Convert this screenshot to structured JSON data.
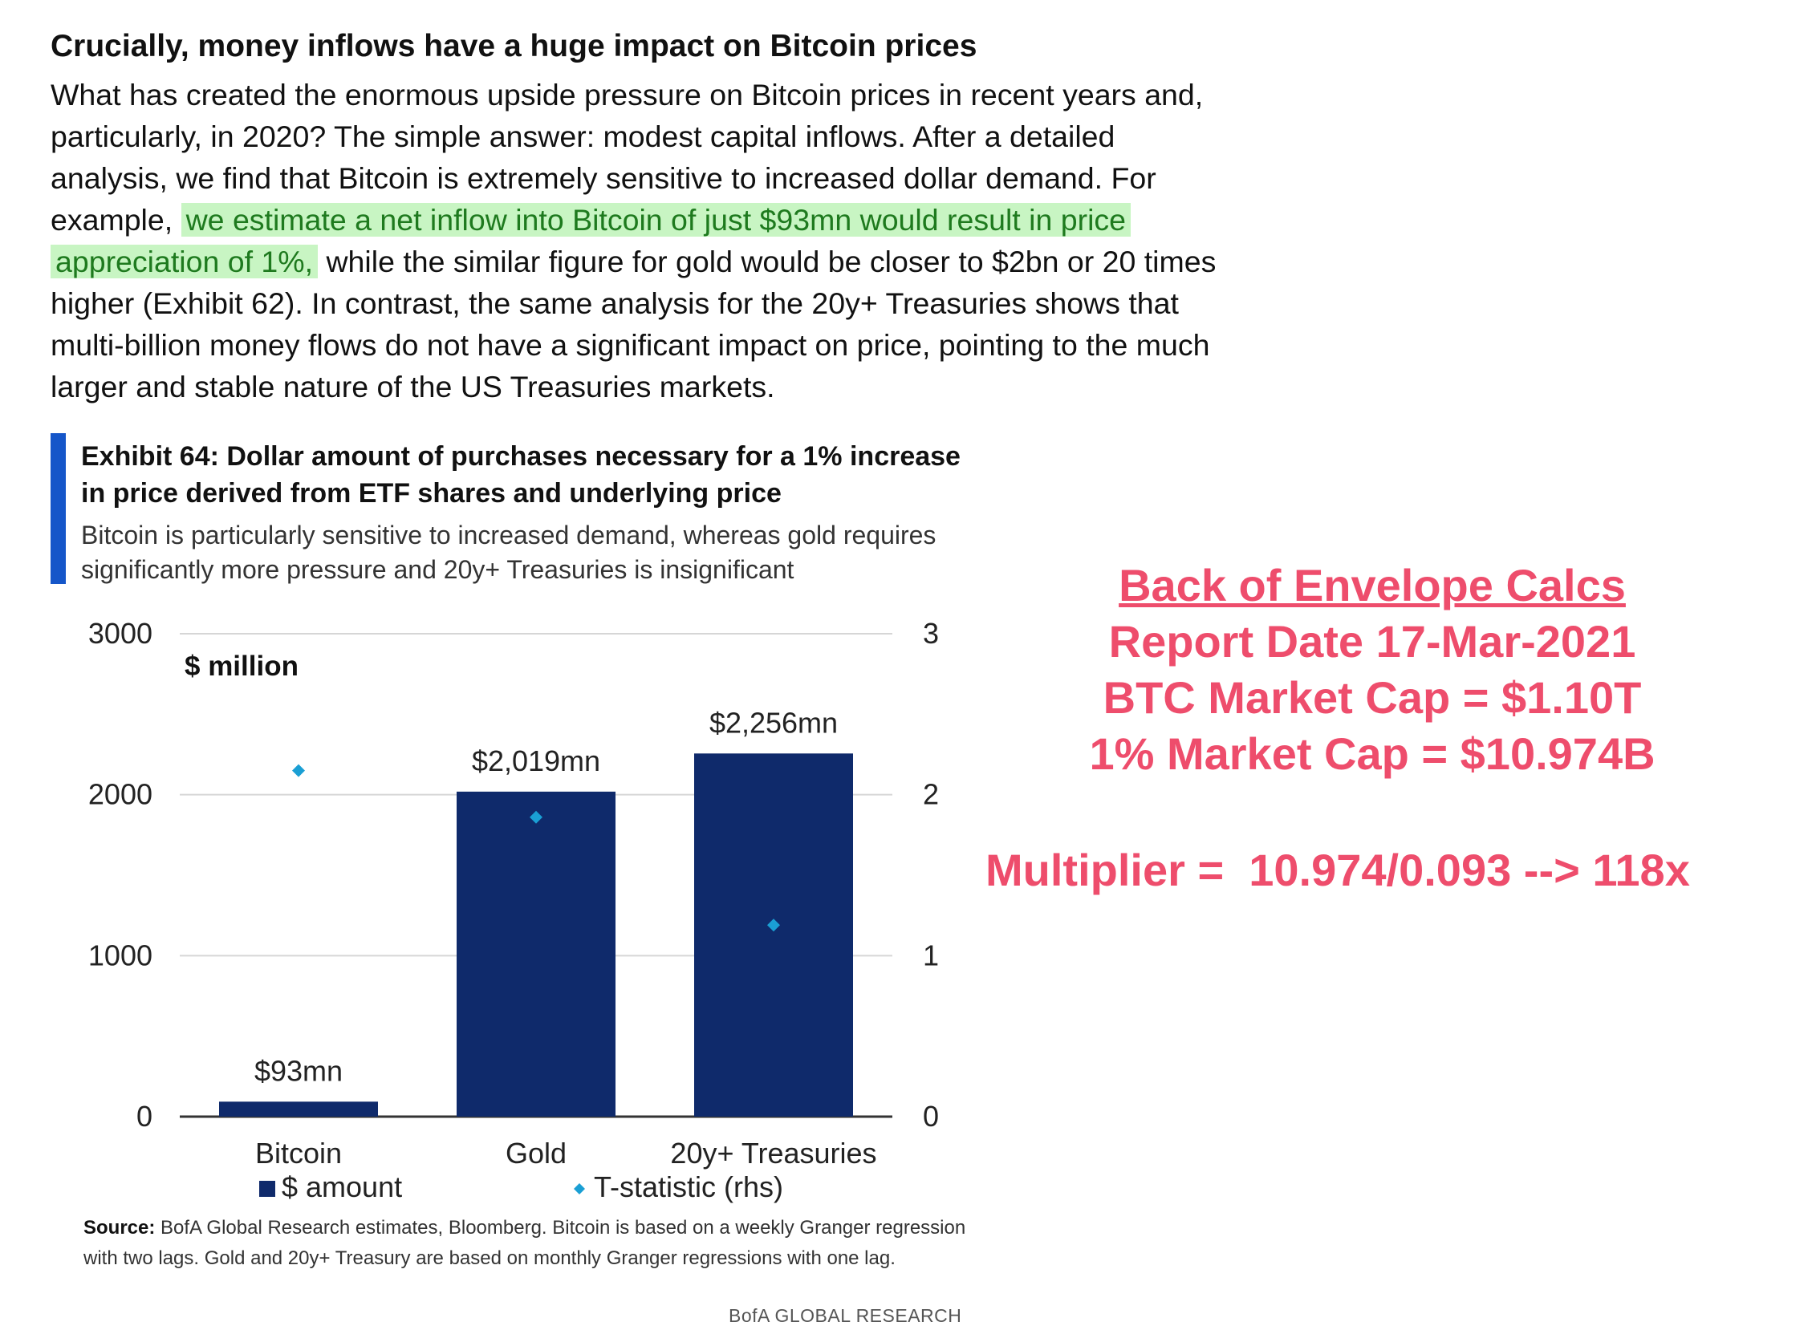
{
  "article": {
    "heading": "Crucially, money inflows have a huge impact on Bitcoin prices",
    "paragraph": {
      "line1": "What has created the enormous upside pressure on Bitcoin prices in recent years and,",
      "line2": "particularly, in 2020? The simple answer: modest capital inflows. After a detailed",
      "line3": "analysis, we find that Bitcoin is extremely sensitive to increased dollar demand. For",
      "line4_pre": "example, ",
      "line4_highlight": "we estimate a net inflow into Bitcoin of just $93mn would result in price",
      "line5_highlight": "appreciation of 1%,",
      "line5_post": " while the similar figure for gold would be closer to $2bn or 20 times",
      "line6": "higher (Exhibit 62). In contrast, the same analysis for the 20y+ Treasuries shows that",
      "line7": "multi-billion money flows do not have a significant impact on price, pointing to the much",
      "line8": "larger and stable nature of the US Treasuries markets."
    }
  },
  "exhibit": {
    "title": "Exhibit 64: Dollar amount of purchases necessary for a 1% increase in price derived from ETF shares and underlying price",
    "subtitle": "Bitcoin is particularly sensitive to increased demand, whereas gold requires significantly more pressure and 20y+ Treasuries is insignificant",
    "source_label": "Source:",
    "source_text": " BofA Global Research estimates, Bloomberg. Bitcoin is based on a weekly Granger regression with two lags. Gold and 20y+ Treasury are based on monthly Granger regressions with one lag.",
    "footer": "BofA GLOBAL RESEARCH"
  },
  "chart_data": {
    "type": "bar",
    "unit_label": "$ million",
    "categories": [
      "Bitcoin",
      "Gold",
      "20y+ Treasuries"
    ],
    "series": [
      {
        "name": "$ amount",
        "axis": "left",
        "type": "bar",
        "values": [
          93,
          2019,
          2256
        ],
        "data_labels": [
          "$93mn",
          "$2,019mn",
          "$2,256mn"
        ]
      },
      {
        "name": "T-statistic (rhs)",
        "axis": "right",
        "type": "scatter",
        "values": [
          2.15,
          1.86,
          1.19
        ]
      }
    ],
    "y_left": {
      "lim": [
        0,
        3000
      ],
      "ticks": [
        "0",
        "1000",
        "2000",
        "3000"
      ]
    },
    "y_right": {
      "lim": [
        0,
        3
      ],
      "ticks": [
        "0",
        "1",
        "2",
        "3"
      ]
    },
    "grid": true,
    "legend_position": "bottom",
    "colors": {
      "bar": "#0f2a6b",
      "marker": "#1a9fd4",
      "grid": "#d6d6d6",
      "axis": "#333333"
    }
  },
  "calcs": {
    "title": "Back of Envelope Calcs",
    "report_date": "Report Date 17-Mar-2021",
    "market_cap": "BTC Market Cap = $1.10T",
    "one_pct": "1% Market Cap = $10.974B",
    "multiplier": "Multiplier =  10.974/0.093 --> 118x",
    "color": "#ee4d6c"
  }
}
